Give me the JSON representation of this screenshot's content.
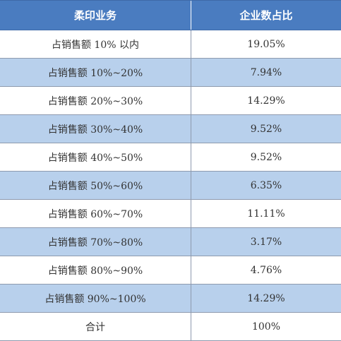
{
  "table": {
    "headers": [
      "柔印业务",
      "企业数占比"
    ],
    "rows": [
      {
        "label": "占销售额 10% 以内",
        "value": "19.05%"
      },
      {
        "label": "占销售额 10%~20%",
        "value": "7.94%"
      },
      {
        "label": "占销售额 20%~30%",
        "value": "14.29%"
      },
      {
        "label": "占销售额 30%~40%",
        "value": "9.52%"
      },
      {
        "label": "占销售额 40%~50%",
        "value": "9.52%"
      },
      {
        "label": "占销售额 50%~60%",
        "value": "6.35%"
      },
      {
        "label": "占销售额 60%~70%",
        "value": "11.11%"
      },
      {
        "label": "占销售额 70%~80%",
        "value": "3.17%"
      },
      {
        "label": "占销售额 80%~90%",
        "value": "4.76%"
      },
      {
        "label": "占销售额 90%~100%",
        "value": "14.29%"
      },
      {
        "label": "合计",
        "value": "100%"
      }
    ]
  },
  "colors": {
    "header_bg": "#4a7cc0",
    "header_text": "#ffffff",
    "shaded_row": "#b8d0ec",
    "plain_row": "#ffffff",
    "border": "#8e9aae"
  }
}
